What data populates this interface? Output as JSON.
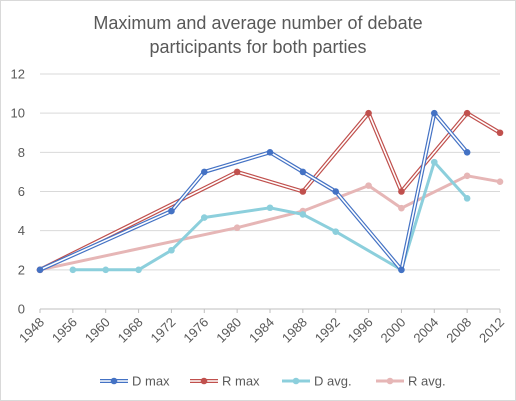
{
  "chart_data": {
    "type": "line",
    "title": "Maximum and average number of debate participants for both parties",
    "title_lines": [
      "Maximum and average number of debate",
      "participants for both parties"
    ],
    "xlabel": "",
    "ylabel": "",
    "ylim": [
      0,
      12
    ],
    "yticks": [
      "0",
      "2",
      "4",
      "6",
      "8",
      "10",
      "12"
    ],
    "categories": [
      "1948",
      "1956",
      "1960",
      "1968",
      "1972",
      "1976",
      "1980",
      "1984",
      "1988",
      "1992",
      "1996",
      "2000",
      "2004",
      "2008",
      "2012"
    ],
    "grid": "horizontal",
    "legend_position": "bottom",
    "series": [
      {
        "name": "D max",
        "color": "#4472c4",
        "style": "double-line",
        "points": [
          {
            "x": "1948",
            "y": 2
          },
          {
            "x": "1972",
            "y": 5
          },
          {
            "x": "1976",
            "y": 7
          },
          {
            "x": "1984",
            "y": 8
          },
          {
            "x": "1988",
            "y": 7
          },
          {
            "x": "1992",
            "y": 6
          },
          {
            "x": "2000",
            "y": 2
          },
          {
            "x": "2004",
            "y": 10
          },
          {
            "x": "2008",
            "y": 8
          }
        ]
      },
      {
        "name": "R max",
        "color": "#c0504d",
        "style": "double-line",
        "points": [
          {
            "x": "1948",
            "y": 2
          },
          {
            "x": "1980",
            "y": 7
          },
          {
            "x": "1988",
            "y": 6
          },
          {
            "x": "1996",
            "y": 10
          },
          {
            "x": "2000",
            "y": 6
          },
          {
            "x": "2008",
            "y": 10
          },
          {
            "x": "2012",
            "y": 9
          }
        ]
      },
      {
        "name": "D avg.",
        "color": "#8ccfdc",
        "style": "thick",
        "points": [
          {
            "x": "1956",
            "y": 2
          },
          {
            "x": "1960",
            "y": 2
          },
          {
            "x": "1968",
            "y": 2
          },
          {
            "x": "1972",
            "y": 3
          },
          {
            "x": "1976",
            "y": 4.67
          },
          {
            "x": "1984",
            "y": 5.17
          },
          {
            "x": "1988",
            "y": 4.83
          },
          {
            "x": "1992",
            "y": 3.95
          },
          {
            "x": "2000",
            "y": 2
          },
          {
            "x": "2004",
            "y": 7.5
          },
          {
            "x": "2008",
            "y": 5.65
          }
        ]
      },
      {
        "name": "R avg.",
        "color": "#e6b6b6",
        "style": "thick",
        "points": [
          {
            "x": "1948",
            "y": 2
          },
          {
            "x": "1980",
            "y": 4.15
          },
          {
            "x": "1988",
            "y": 5
          },
          {
            "x": "1996",
            "y": 6.3
          },
          {
            "x": "2000",
            "y": 5.15
          },
          {
            "x": "2008",
            "y": 6.8
          },
          {
            "x": "2012",
            "y": 6.5
          }
        ]
      }
    ]
  }
}
